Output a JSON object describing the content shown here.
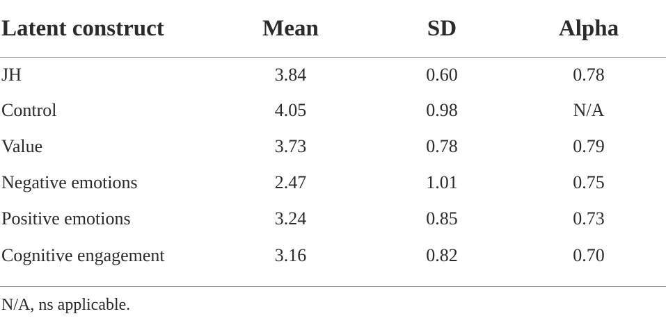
{
  "table": {
    "headers": [
      "Latent construct",
      "Mean",
      "SD",
      "Alpha"
    ],
    "rows": [
      [
        "JH",
        "3.84",
        "0.60",
        "0.78"
      ],
      [
        "Control",
        "4.05",
        "0.98",
        "N/A"
      ],
      [
        "Value",
        "3.73",
        "0.78",
        "0.79"
      ],
      [
        "Negative emotions",
        "2.47",
        "1.01",
        "0.75"
      ],
      [
        "Positive emotions",
        "3.24",
        "0.85",
        "0.73"
      ],
      [
        "Cognitive engagement",
        "3.16",
        "0.82",
        "0.70"
      ]
    ]
  },
  "footnote": "N/A, ns applicable."
}
